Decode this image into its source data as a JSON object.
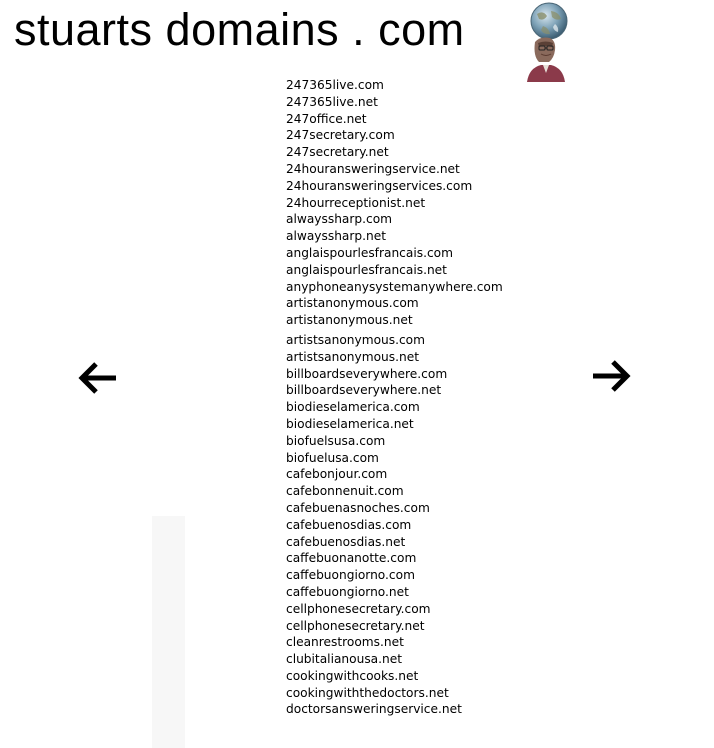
{
  "header": {
    "title": "stuarts domains . com",
    "logo_icon": "globe-on-head-logo"
  },
  "navigation": {
    "prev_icon": "arrow-left-icon",
    "next_icon": "arrow-right-icon"
  },
  "domains": [
    "247365live.com",
    "247365live.net",
    "247office.net",
    "247secretary.com",
    "247secretary.net",
    "24houransweringservice.net",
    "24houransweringservices.com",
    "24hourreceptionist.net",
    "alwayssharp.com",
    "alwayssharp.net",
    "anglaispourlesfrancais.com",
    "anglaispourlesfrancais.net",
    "anyphoneanysystemanywhere.com",
    "artistanonymous.com",
    "artistanonymous.net",
    "artistsanonymous.com",
    "artistsanonymous.net",
    "billboardseverywhere.com",
    "billboardseverywhere.net",
    "biodieselamerica.com",
    "biodieselamerica.net",
    "biofuelsusa.com",
    "biofuelusa.com",
    "cafebonjour.com",
    "cafebonnenuit.com",
    "cafebuenasnoches.com",
    "cafebuenosdias.com",
    "cafebuenosdias.net",
    "caffebuonanotte.com",
    "caffebuongiorno.com",
    "caffebuongiorno.net",
    "cellphonesecretary.com",
    "cellphonesecretary.net",
    "cleanrestrooms.net",
    "clubitalianousa.net",
    "cookingwithcooks.net",
    "cookingwiththedoctors.net",
    "doctorsansweringservice.net"
  ]
}
